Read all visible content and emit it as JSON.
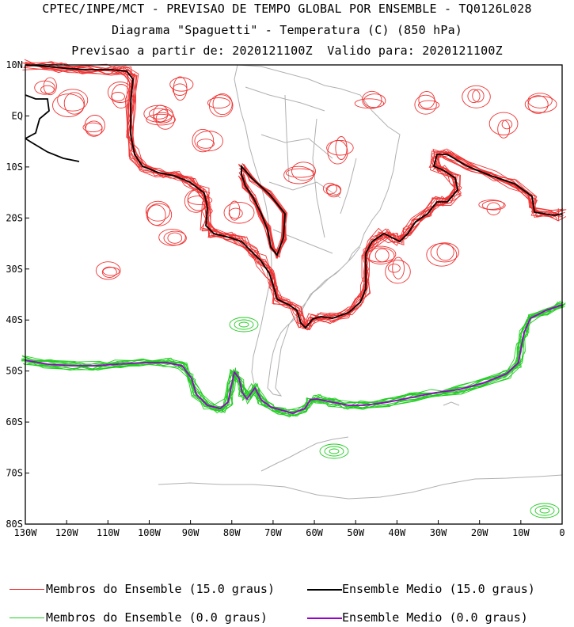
{
  "header": {
    "line1": "CPTEC/INPE/MCT - PREVISAO DE TEMPO GLOBAL POR ENSEMBLE - TQ0126L028",
    "line2": "Diagrama \"Spaguetti\" - Temperatura (C) (850 hPa)",
    "line3": "Previsao a partir de: 2020121100Z  Valido para: 2020121100Z"
  },
  "colors": {
    "members_15": "#ee3333",
    "mean_15": "#000000",
    "members_0": "#22cc22",
    "mean_0": "#9900cc",
    "coast": "#b0b0b0",
    "frame": "#000000"
  },
  "map": {
    "lon_range": [
      -130,
      0
    ],
    "lat_range": [
      -80,
      10
    ],
    "lat_ticks": [
      "10N",
      "EQ",
      "10S",
      "20S",
      "30S",
      "40S",
      "50S",
      "60S",
      "70S",
      "80S"
    ],
    "lon_ticks": [
      "130W",
      "120W",
      "110W",
      "100W",
      "90W",
      "80W",
      "70W",
      "60W",
      "50W",
      "40W",
      "30W",
      "20W",
      "10W",
      "0"
    ]
  },
  "legend": {
    "members_15": "Membros do Ensemble (15.0 graus)",
    "mean_15": "Ensemble Medio (15.0 graus)",
    "members_0": "Membros do Ensemble (0.0 graus)",
    "mean_0": "Ensemble Medio (0.0 graus)"
  }
}
